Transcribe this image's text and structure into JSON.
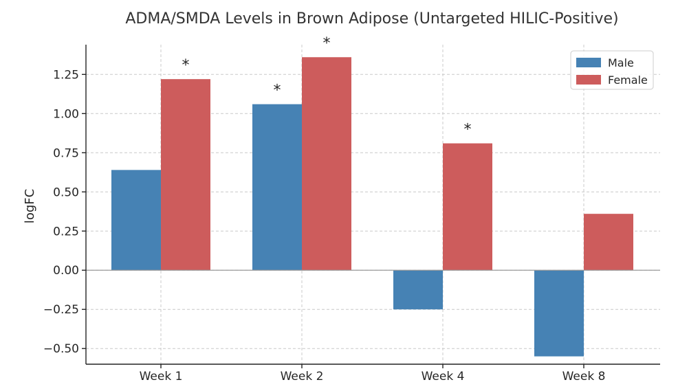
{
  "chart_data": {
    "type": "bar",
    "title": "ADMA/SMDA Levels in Brown Adipose (Untargeted HILIC-Positive)",
    "xlabel": "",
    "ylabel": "logFC",
    "categories": [
      "Week 1",
      "Week 2",
      "Week 4",
      "Week 8"
    ],
    "series": [
      {
        "name": "Male",
        "values": [
          0.64,
          1.06,
          -0.25,
          -0.55
        ],
        "color": "#4682b4",
        "significant": [
          false,
          true,
          false,
          false
        ]
      },
      {
        "name": "Female",
        "values": [
          1.22,
          1.36,
          0.81,
          0.36
        ],
        "color": "#cd5c5c",
        "significant": [
          true,
          true,
          true,
          false
        ]
      }
    ],
    "significance_marker": "*",
    "ylim": [
      -0.6,
      1.44
    ],
    "yticks": [
      -0.5,
      -0.25,
      0.0,
      0.25,
      0.5,
      0.75,
      1.0,
      1.25
    ],
    "ytick_labels": [
      "−0.50",
      "−0.25",
      "0.00",
      "0.25",
      "0.50",
      "0.75",
      "1.00",
      "1.25"
    ],
    "grid": true,
    "legend_position": "top-right"
  }
}
